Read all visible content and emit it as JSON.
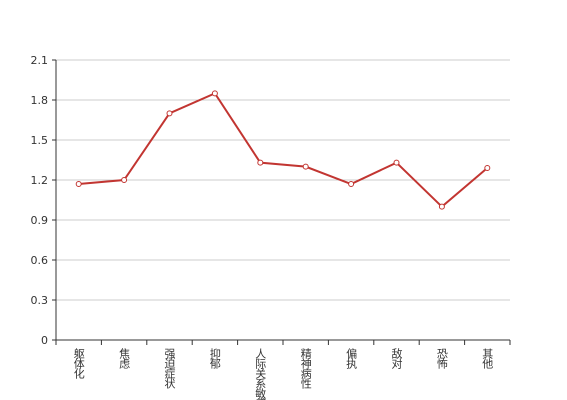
{
  "chart_data": {
    "type": "line",
    "categories": [
      "躯体化",
      "焦虑",
      "强迫症状",
      "抑郁",
      "人际关系敏感",
      "精神病性",
      "偏执",
      "敌对",
      "恐怖",
      "其他"
    ],
    "series": [
      {
        "color": "#c23531",
        "values": [
          1.17,
          1.2,
          1.7,
          1.85,
          1.33,
          1.3,
          1.17,
          1.33,
          1.0,
          1.29
        ]
      }
    ],
    "ylim": [
      0,
      2.1
    ],
    "yticks": [
      0,
      0.3,
      0.6,
      0.9,
      1.2,
      1.5,
      1.8,
      2.1
    ],
    "grid": true
  }
}
